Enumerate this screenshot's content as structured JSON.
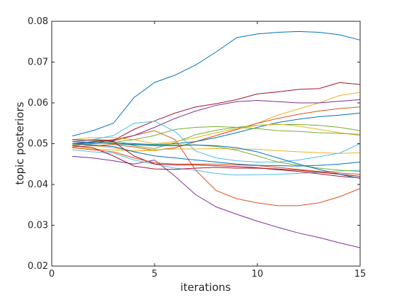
{
  "chart_data": {
    "type": "line",
    "title": "",
    "xlabel": "iterations",
    "ylabel": "topic posteriors",
    "xlim": [
      0,
      15
    ],
    "ylim": [
      0.02,
      0.08
    ],
    "xticks": [
      0,
      5,
      10,
      15
    ],
    "xtick_labels": [
      "0",
      "5",
      "10",
      "15"
    ],
    "yticks": [
      0.02,
      0.03,
      0.04,
      0.05,
      0.06,
      0.07,
      0.08
    ],
    "ytick_labels": [
      "0.02",
      "0.03",
      "0.04",
      "0.05",
      "0.06",
      "0.07",
      "0.08"
    ],
    "grid": false,
    "legend": "none",
    "x": [
      1,
      2,
      3,
      4,
      5,
      6,
      7,
      8,
      9,
      10,
      11,
      12,
      13,
      14,
      15
    ],
    "series": [
      {
        "color": "#0072bd",
        "values": [
          0.0519,
          0.0532,
          0.055,
          0.0613,
          0.065,
          0.0668,
          0.0693,
          0.0725,
          0.076,
          0.0769,
          0.0773,
          0.0775,
          0.0773,
          0.0767,
          0.0754
        ]
      },
      {
        "color": "#7e2f8e",
        "values": [
          0.0469,
          0.0465,
          0.0458,
          0.045,
          0.046,
          0.042,
          0.0375,
          0.0345,
          0.0327,
          0.031,
          0.0295,
          0.0281,
          0.027,
          0.0257,
          0.0245
        ]
      },
      {
        "color": "#d95319",
        "values": [
          0.0495,
          0.05,
          0.051,
          0.052,
          0.0532,
          0.051,
          0.0435,
          0.0385,
          0.0365,
          0.0355,
          0.0348,
          0.0348,
          0.0355,
          0.037,
          0.039
        ]
      },
      {
        "color": "#a2142f",
        "values": [
          0.0505,
          0.051,
          0.0508,
          0.0535,
          0.0556,
          0.0575,
          0.059,
          0.0598,
          0.0608,
          0.0622,
          0.0627,
          0.0633,
          0.0635,
          0.065,
          0.0645
        ]
      },
      {
        "color": "#edb120",
        "values": [
          0.05,
          0.0495,
          0.049,
          0.0482,
          0.0483,
          0.049,
          0.0505,
          0.052,
          0.0535,
          0.055,
          0.057,
          0.0585,
          0.06,
          0.0618,
          0.0626
        ]
      },
      {
        "color": "#7e2f8e",
        "values": [
          0.05,
          0.0505,
          0.0507,
          0.052,
          0.054,
          0.0562,
          0.058,
          0.0594,
          0.0603,
          0.0606,
          0.0603,
          0.06,
          0.06,
          0.0604,
          0.0608
        ]
      },
      {
        "color": "#d95319",
        "values": [
          0.0492,
          0.0495,
          0.0498,
          0.0492,
          0.0484,
          0.049,
          0.0505,
          0.052,
          0.0535,
          0.055,
          0.0562,
          0.0572,
          0.058,
          0.0586,
          0.059
        ]
      },
      {
        "color": "#0072bd",
        "values": [
          0.05,
          0.0502,
          0.0503,
          0.05,
          0.0498,
          0.05,
          0.0505,
          0.0515,
          0.0527,
          0.054,
          0.0552,
          0.056,
          0.0566,
          0.057,
          0.0575
        ]
      },
      {
        "color": "#77ac30",
        "values": [
          0.0505,
          0.051,
          0.0505,
          0.0495,
          0.0488,
          0.0503,
          0.0522,
          0.0533,
          0.054,
          0.0545,
          0.0547,
          0.0547,
          0.0545,
          0.054,
          0.0532
        ]
      },
      {
        "color": "#edb120",
        "values": [
          0.051,
          0.0515,
          0.0515,
          0.051,
          0.05,
          0.0505,
          0.0515,
          0.0527,
          0.0537,
          0.0545,
          0.0548,
          0.0543,
          0.0535,
          0.0527,
          0.052
        ]
      },
      {
        "color": "#77ac30",
        "values": [
          0.0498,
          0.05,
          0.0503,
          0.051,
          0.052,
          0.0535,
          0.054,
          0.0542,
          0.054,
          0.0537,
          0.0532,
          0.053,
          0.0527,
          0.0525,
          0.0523
        ]
      },
      {
        "color": "#edb120",
        "values": [
          0.049,
          0.0487,
          0.0485,
          0.0482,
          0.0485,
          0.0487,
          0.0487,
          0.0488,
          0.0487,
          0.0486,
          0.0483,
          0.048,
          0.0478,
          0.0476,
          0.0478
        ]
      },
      {
        "color": "#4dbeee",
        "values": [
          0.0505,
          0.051,
          0.052,
          0.055,
          0.0555,
          0.053,
          0.0482,
          0.0465,
          0.0458,
          0.0455,
          0.0455,
          0.046,
          0.0468,
          0.0477,
          0.05
        ]
      },
      {
        "color": "#4dbeee",
        "values": [
          0.0485,
          0.048,
          0.0477,
          0.046,
          0.045,
          0.044,
          0.0435,
          0.0427,
          0.0423,
          0.0424,
          0.0425,
          0.0427,
          0.043,
          0.0433,
          0.0435
        ]
      },
      {
        "color": "#0072bd",
        "values": [
          0.05,
          0.0497,
          0.0493,
          0.048,
          0.047,
          0.0465,
          0.046,
          0.0455,
          0.045,
          0.0447,
          0.0446,
          0.0445,
          0.0447,
          0.045,
          0.0455
        ]
      },
      {
        "color": "#77ac30",
        "values": [
          0.0505,
          0.0503,
          0.05,
          0.0497,
          0.0497,
          0.0497,
          0.0497,
          0.0493,
          0.0484,
          0.047,
          0.0455,
          0.0447,
          0.044,
          0.0435,
          0.0432
        ]
      },
      {
        "color": "#a2142f",
        "values": [
          0.051,
          0.0508,
          0.0505,
          0.047,
          0.045,
          0.0448,
          0.0448,
          0.0446,
          0.0444,
          0.0441,
          0.0436,
          0.0432,
          0.0426,
          0.042,
          0.0416
        ]
      },
      {
        "color": "#a2142f",
        "values": [
          0.0495,
          0.049,
          0.047,
          0.0445,
          0.0438,
          0.0437,
          0.044,
          0.0442,
          0.044,
          0.044,
          0.0438,
          0.0435,
          0.043,
          0.0425,
          0.042
        ]
      },
      {
        "color": "#0072bd",
        "values": [
          0.0505,
          0.0503,
          0.05,
          0.0498,
          0.0495,
          0.0495,
          0.0497,
          0.0495,
          0.049,
          0.048,
          0.0465,
          0.045,
          0.0437,
          0.0425,
          0.0415
        ]
      },
      {
        "color": "#d95319",
        "values": [
          0.049,
          0.0485,
          0.048,
          0.0465,
          0.0453,
          0.045,
          0.045,
          0.045,
          0.0448,
          0.0446,
          0.0442,
          0.0437,
          0.0432,
          0.0428,
          0.0425
        ]
      }
    ]
  }
}
